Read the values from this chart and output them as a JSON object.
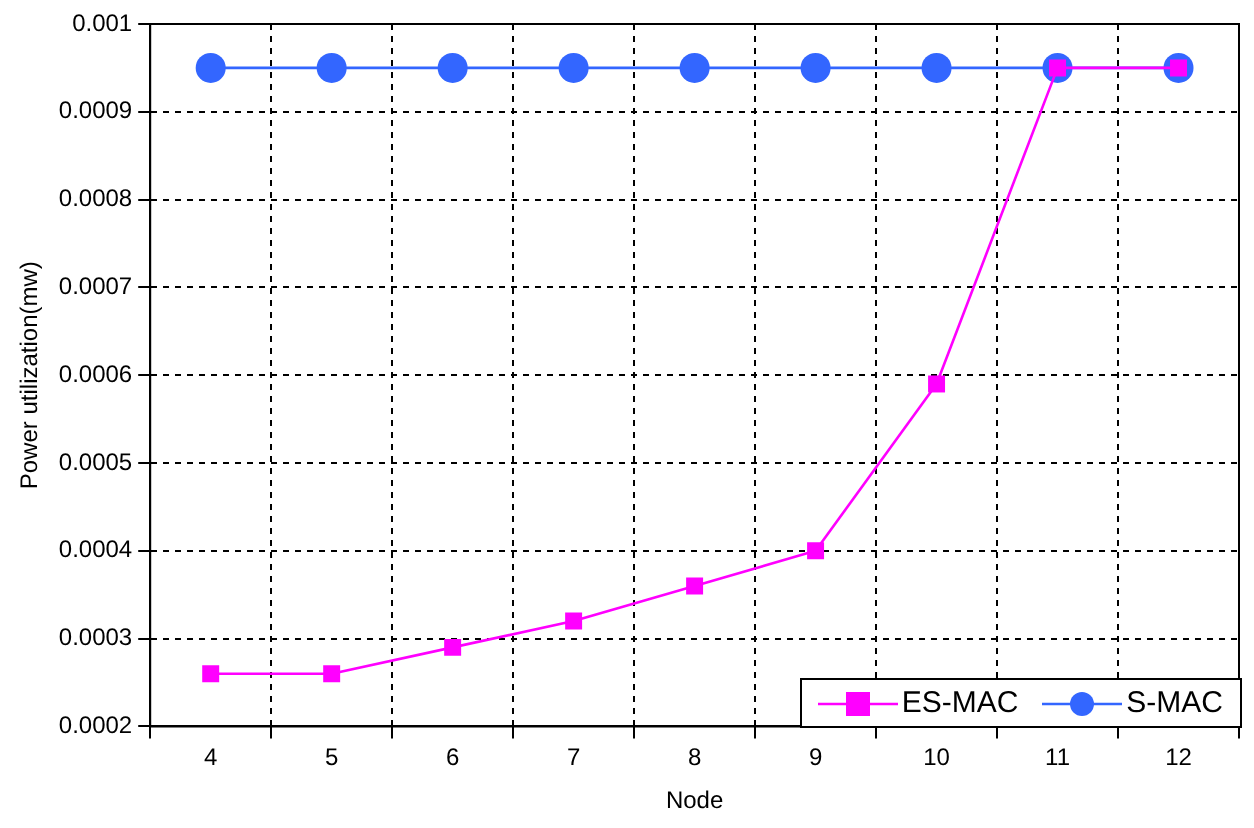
{
  "chart_data": {
    "type": "line",
    "xlabel": "Node",
    "ylabel": "Power utilization(mw)",
    "categories": [
      "4",
      "5",
      "6",
      "7",
      "8",
      "9",
      "10",
      "11",
      "12"
    ],
    "series": [
      {
        "name": "ES-MAC",
        "color": "#ff00ff",
        "marker": "square",
        "values": [
          0.00026,
          0.00026,
          0.00029,
          0.00032,
          0.00036,
          0.0004,
          0.00059,
          0.00095,
          0.00095
        ]
      },
      {
        "name": "S-MAC",
        "color": "#3366ff",
        "marker": "circle",
        "values": [
          0.00095,
          0.00095,
          0.00095,
          0.00095,
          0.00095,
          0.00095,
          0.00095,
          0.00095,
          0.00095
        ]
      }
    ],
    "ylim": [
      0.0002,
      0.001
    ],
    "yticks": [
      0.0002,
      0.0003,
      0.0004,
      0.0005,
      0.0006,
      0.0007,
      0.0008,
      0.0009,
      0.001
    ],
    "grid": true,
    "legend": "bottom right",
    "line_style": "solid"
  }
}
